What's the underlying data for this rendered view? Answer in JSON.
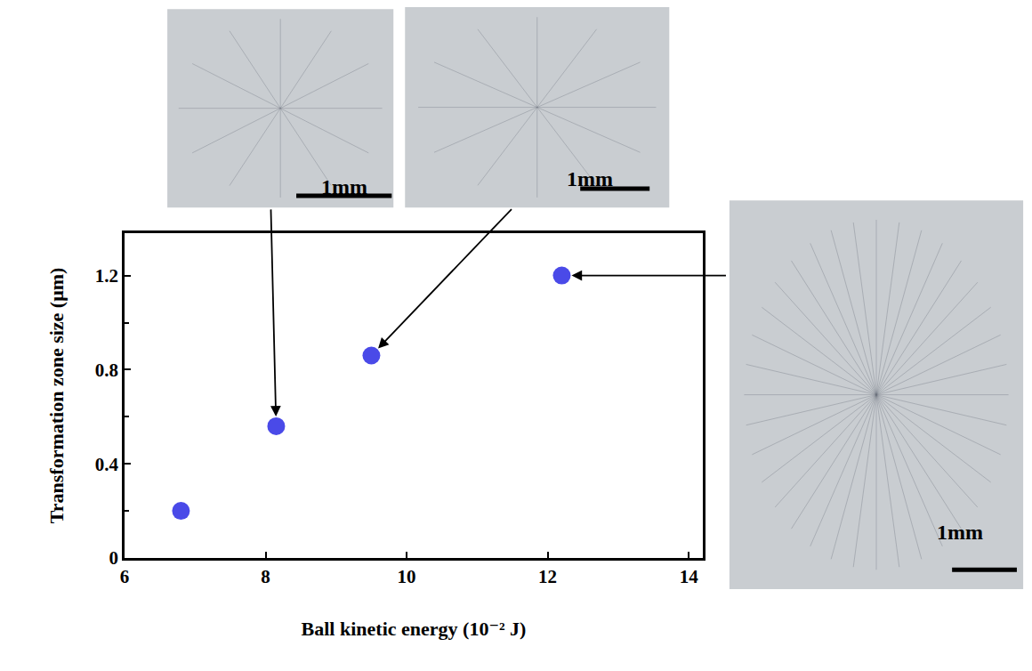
{
  "chart_data": {
    "type": "scatter",
    "x_label": "Ball kinetic energy (10⁻² J)",
    "y_label": "Transformation zone size (μm)",
    "x": [
      6.8,
      8.15,
      9.5,
      12.2
    ],
    "values": [
      0.2,
      0.56,
      0.86,
      1.2
    ],
    "color": "#4a4ae8",
    "marker": "circle",
    "xlim": [
      6,
      14.2
    ],
    "xticks": [
      6,
      8,
      10,
      12,
      14
    ],
    "ylim": [
      0,
      1.38
    ],
    "yticks": [
      0,
      0.4,
      0.8,
      1.2
    ],
    "grid": false,
    "insets": [
      {
        "scale_bar": "1mm",
        "point": 1
      },
      {
        "scale_bar": "1mm",
        "point": 2
      },
      {
        "scale_bar": "1mm",
        "point": 3
      }
    ]
  }
}
